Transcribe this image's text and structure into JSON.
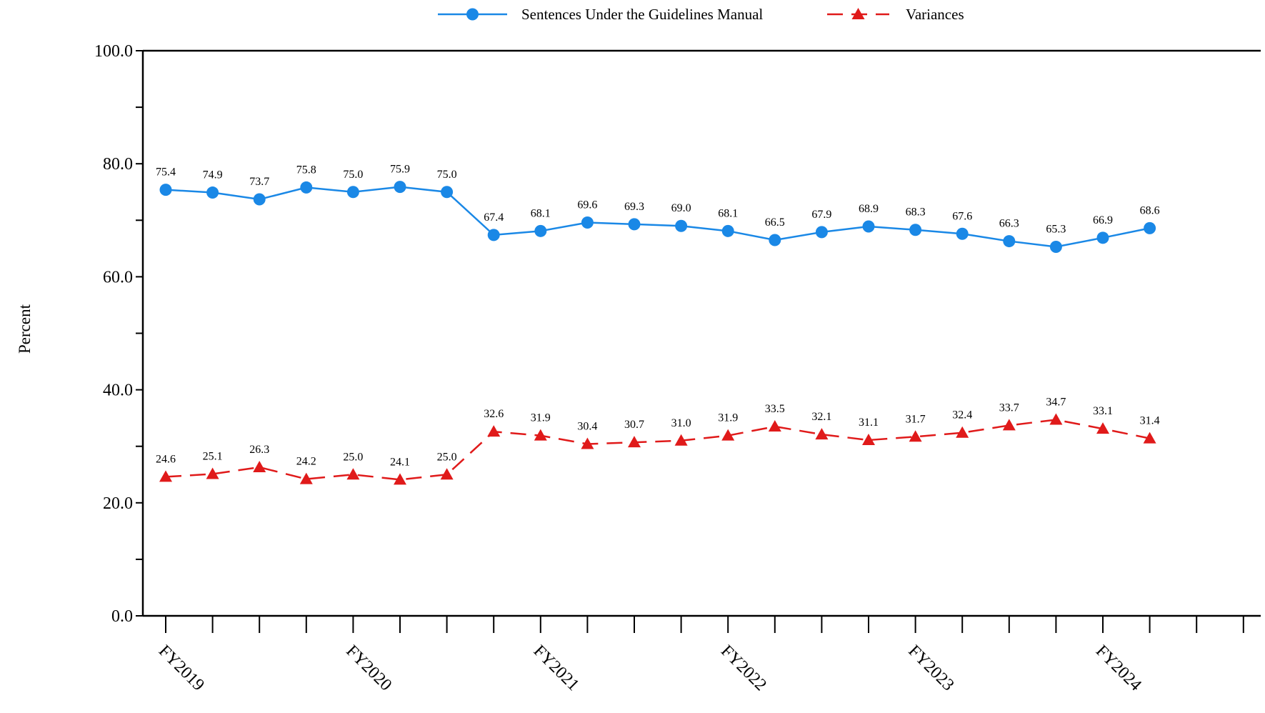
{
  "chart_data": {
    "type": "line",
    "ylabel": "Percent",
    "xlabel": "",
    "ylim": [
      0,
      100
    ],
    "y_ticks": [
      "0.0",
      "20.0",
      "40.0",
      "60.0",
      "80.0",
      "100.0"
    ],
    "x_tick_labels": [
      "FY2019",
      "FY2020",
      "FY2021",
      "FY2022",
      "FY2023",
      "FY2024"
    ],
    "quarters_per_fiscal_year": 4,
    "series": [
      {
        "name": "Sentences Under the Guidelines Manual",
        "color": "#1a88e6",
        "line_style": "solid",
        "marker": "circle",
        "values": [
          75.4,
          74.9,
          73.7,
          75.8,
          75.0,
          75.9,
          75.0,
          67.4,
          68.1,
          69.6,
          69.3,
          69.0,
          68.1,
          66.5,
          67.9,
          68.9,
          68.3,
          67.6,
          66.3,
          65.3,
          66.9,
          68.6
        ],
        "labels": [
          "75.4",
          "74.9",
          "73.7",
          "75.8",
          "75.0",
          "75.9",
          "75.0",
          "67.4",
          "68.1",
          "69.6",
          "69.3",
          "69.0",
          "68.1",
          "66.5",
          "67.9",
          "68.9",
          "68.3",
          "67.6",
          "66.3",
          "65.3",
          "66.9",
          "68.6"
        ]
      },
      {
        "name": "Variances",
        "color": "#e01a1a",
        "line_style": "dashed",
        "marker": "triangle",
        "values": [
          24.6,
          25.1,
          26.3,
          24.2,
          25.0,
          24.1,
          25.0,
          32.6,
          31.9,
          30.4,
          30.7,
          31.0,
          31.9,
          33.5,
          32.1,
          31.1,
          31.7,
          32.4,
          33.7,
          34.7,
          33.1,
          31.4
        ],
        "labels": [
          "24.6",
          "25.1",
          "26.3",
          "24.2",
          "25.0",
          "24.1",
          "25.0",
          "32.6",
          "31.9",
          "30.4",
          "30.7",
          "31.0",
          "31.9",
          "33.5",
          "32.1",
          "31.1",
          "31.7",
          "32.4",
          "33.7",
          "34.7",
          "33.1",
          "31.4"
        ]
      }
    ],
    "legend_position": "top-center",
    "grid": false
  }
}
